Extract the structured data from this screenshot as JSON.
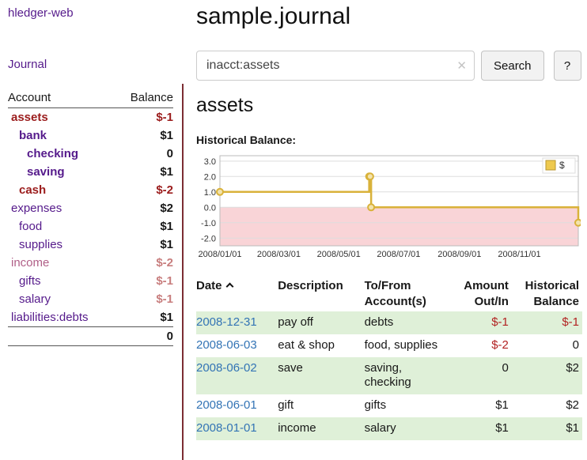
{
  "app": {
    "title": "hledger-web"
  },
  "sidebar": {
    "journal_link": "Journal",
    "accounts_table": {
      "headers": {
        "account": "Account",
        "balance": "Balance"
      },
      "accounts": [
        {
          "name": "assets",
          "indent": 0,
          "bold": true,
          "name_tone": "neg-strong",
          "balance": "$-1",
          "bal_tone": "neg-strong"
        },
        {
          "name": "bank",
          "indent": 1,
          "bold": true,
          "name_tone": "link",
          "balance": "$1",
          "bal_tone": "normal"
        },
        {
          "name": "checking",
          "indent": 2,
          "bold": true,
          "name_tone": "link",
          "balance": "0",
          "bal_tone": "normal"
        },
        {
          "name": "saving",
          "indent": 2,
          "bold": true,
          "name_tone": "link",
          "balance": "$1",
          "bal_tone": "normal"
        },
        {
          "name": "cash",
          "indent": 1,
          "bold": true,
          "name_tone": "neg-strong",
          "balance": "$-2",
          "bal_tone": "neg-strong"
        },
        {
          "name": "expenses",
          "indent": 0,
          "bold": false,
          "name_tone": "link",
          "balance": "$2",
          "bal_tone": "normal"
        },
        {
          "name": "food",
          "indent": 1,
          "bold": false,
          "name_tone": "link",
          "balance": "$1",
          "bal_tone": "normal"
        },
        {
          "name": "supplies",
          "indent": 1,
          "bold": false,
          "name_tone": "link",
          "balance": "$1",
          "bal_tone": "normal"
        },
        {
          "name": "income",
          "indent": 0,
          "bold": false,
          "name_tone": "muted-neg",
          "balance": "$-2",
          "bal_tone": "neg-soft"
        },
        {
          "name": "gifts",
          "indent": 1,
          "bold": false,
          "name_tone": "link",
          "balance": "$-1",
          "bal_tone": "neg-soft"
        },
        {
          "name": "salary",
          "indent": 1,
          "bold": false,
          "name_tone": "link",
          "balance": "$-1",
          "bal_tone": "neg-soft"
        },
        {
          "name": "liabilities:debts",
          "indent": 0,
          "bold": false,
          "name_tone": "link",
          "balance": "$1",
          "bal_tone": "normal"
        }
      ],
      "total": "0"
    }
  },
  "main": {
    "title": "sample.journal",
    "search": {
      "value": "inacct:assets",
      "clear_icon": "✕",
      "button": "Search",
      "help_button": "?"
    },
    "section_title": "assets",
    "chart_label": "Historical Balance:"
  },
  "chart_data": {
    "type": "line",
    "step": true,
    "title": "Historical Balance",
    "legend_position": "top-right",
    "legend": [
      {
        "label": "$",
        "color": "#eec94e"
      }
    ],
    "x_domain_days": [
      0,
      365
    ],
    "x_ticks": [
      {
        "day": 0,
        "label": "2008/01/01"
      },
      {
        "day": 60,
        "label": "2008/03/01"
      },
      {
        "day": 121,
        "label": "2008/05/01"
      },
      {
        "day": 182,
        "label": "2008/07/01"
      },
      {
        "day": 244,
        "label": "2008/09/01"
      },
      {
        "day": 305,
        "label": "2008/11/01"
      }
    ],
    "y_ticks": [
      {
        "value": 3,
        "label": "3.0"
      },
      {
        "value": 2,
        "label": "2.0"
      },
      {
        "value": 1,
        "label": "1.0"
      },
      {
        "value": 0,
        "label": "0.0"
      },
      {
        "value": -1,
        "label": "-1.0"
      },
      {
        "value": -2,
        "label": "-2.0"
      }
    ],
    "ylim": [
      -2.5,
      3.35
    ],
    "points": [
      {
        "date": "2008-01-01",
        "day": 0,
        "value": 1
      },
      {
        "date": "2008-06-01",
        "day": 152,
        "value": 2
      },
      {
        "date": "2008-06-02",
        "day": 153,
        "value": 2
      },
      {
        "date": "2008-06-03",
        "day": 154,
        "value": 0
      },
      {
        "date": "2008-12-31",
        "day": 365,
        "value": -1
      }
    ],
    "grid": true,
    "negative_region_fill": "#f9d4d7",
    "line_color": "#d9b23a",
    "marker_fill": "#f3e3ad"
  },
  "register": {
    "headers": {
      "date": "Date",
      "description": "Description",
      "accounts": "To/From Account(s)",
      "amount": "Amount Out/In",
      "balance": "Historical Balance"
    },
    "rows": [
      {
        "date": "2008-12-31",
        "description": "pay off",
        "accounts": "debts",
        "amount": "$-1",
        "amount_negative": true,
        "balance": "$-1",
        "balance_negative": true
      },
      {
        "date": "2008-06-03",
        "description": "eat & shop",
        "accounts": "food, supplies",
        "amount": "$-2",
        "amount_negative": true,
        "balance": "0",
        "balance_negative": false
      },
      {
        "date": "2008-06-02",
        "description": "save",
        "accounts": "saving, checking",
        "amount": "0",
        "amount_negative": false,
        "balance": "$2",
        "balance_negative": false
      },
      {
        "date": "2008-06-01",
        "description": "gift",
        "accounts": "gifts",
        "amount": "$1",
        "amount_negative": false,
        "balance": "$2",
        "balance_negative": false
      },
      {
        "date": "2008-01-01",
        "description": "income",
        "accounts": "salary",
        "amount": "$1",
        "amount_negative": false,
        "balance": "$1",
        "balance_negative": false
      }
    ]
  }
}
